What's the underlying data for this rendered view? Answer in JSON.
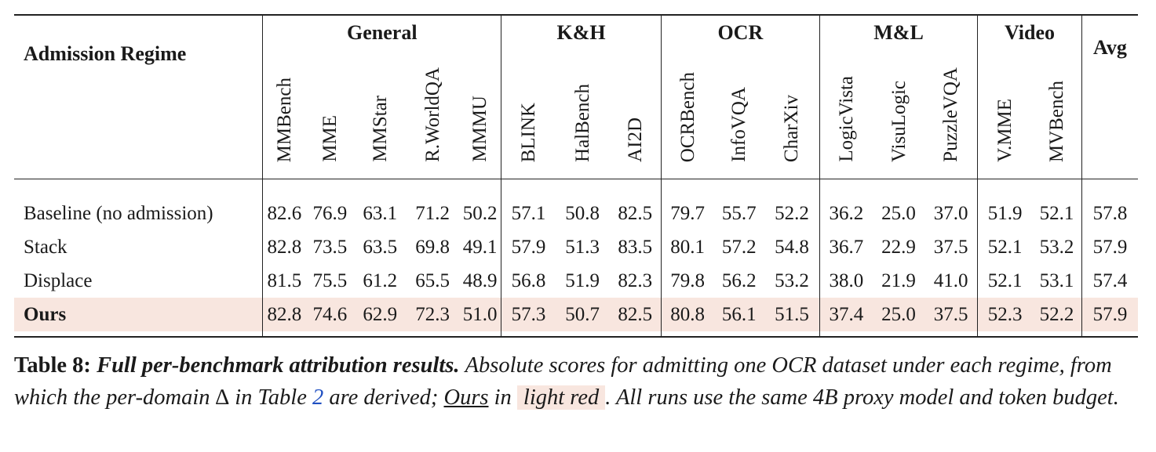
{
  "table": {
    "row_header": "Admission Regime",
    "groups": [
      {
        "name": "General",
        "benchmarks": [
          "MMBench",
          "MME",
          "MMStar",
          "R.WorldQA",
          "MMMU"
        ]
      },
      {
        "name": "K&H",
        "benchmarks": [
          "BLINK",
          "HalBench",
          "AI2D"
        ]
      },
      {
        "name": "OCR",
        "benchmarks": [
          "OCRBench",
          "InfoVQA",
          "CharXiv"
        ]
      },
      {
        "name": "M&L",
        "benchmarks": [
          "LogicVista",
          "VisuLogic",
          "PuzzleVQA"
        ]
      },
      {
        "name": "Video",
        "benchmarks": [
          "V.MME",
          "MVBench"
        ]
      }
    ],
    "avg_header": "Avg",
    "rows": [
      {
        "label": "Baseline (no admission)",
        "values": [
          "82.6",
          "76.9",
          "63.1",
          "71.2",
          "50.2",
          "57.1",
          "50.8",
          "82.5",
          "79.7",
          "55.7",
          "52.2",
          "36.2",
          "25.0",
          "37.0",
          "51.9",
          "52.1"
        ],
        "avg": "57.8"
      },
      {
        "label": "Stack",
        "values": [
          "82.8",
          "73.5",
          "63.5",
          "69.8",
          "49.1",
          "57.9",
          "51.3",
          "83.5",
          "80.1",
          "57.2",
          "54.8",
          "36.7",
          "22.9",
          "37.5",
          "52.1",
          "53.2"
        ],
        "avg": "57.9"
      },
      {
        "label": "Displace",
        "values": [
          "81.5",
          "75.5",
          "61.2",
          "65.5",
          "48.9",
          "56.8",
          "51.9",
          "82.3",
          "79.8",
          "56.2",
          "53.2",
          "38.0",
          "21.9",
          "41.0",
          "52.1",
          "53.1"
        ],
        "avg": "57.4"
      },
      {
        "label": "Ours",
        "values": [
          "82.8",
          "74.6",
          "62.9",
          "72.3",
          "51.0",
          "57.3",
          "50.7",
          "82.5",
          "80.8",
          "56.1",
          "51.5",
          "37.4",
          "25.0",
          "37.5",
          "52.3",
          "52.2"
        ],
        "avg": "57.9"
      }
    ],
    "highlight_color": "#f8e6df"
  },
  "caption": {
    "label": "Table 8:",
    "title": "Full per-benchmark attribution results.",
    "text1": "Absolute scores for admitting one OCR dataset under each regime, from which the per-domain ∆ in Table ",
    "ref": "2",
    "text2": " are derived; ",
    "ours": "Ours",
    "text3": " in ",
    "highlight": "light red",
    "text4": ". All runs use the same 4B proxy model and token budget."
  }
}
